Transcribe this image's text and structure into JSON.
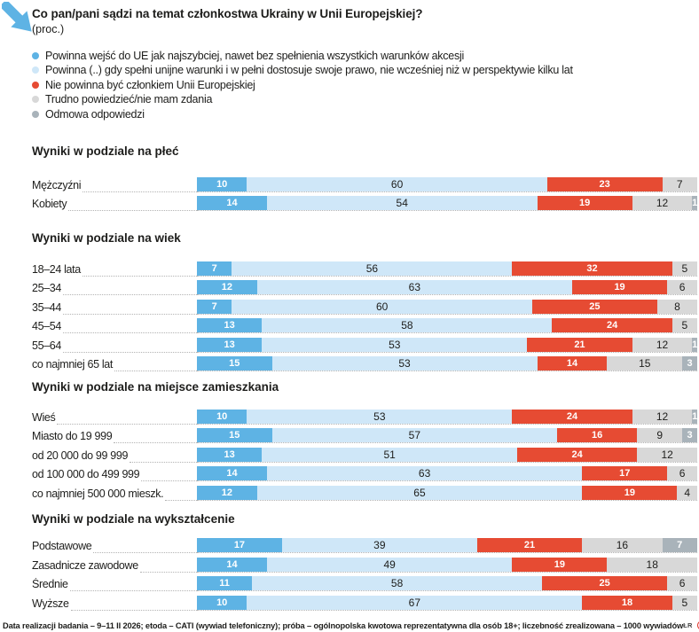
{
  "header": {
    "title": "Co pan/pani sądzi na temat członkostwa Ukrainy w Unii Europejskiej?",
    "unit": "(proc.)"
  },
  "chart_data": {
    "type": "bar",
    "orientation": "horizontal",
    "stacked": true,
    "unit": "proc.",
    "xlim": [
      0,
      100
    ],
    "grid": false,
    "legend_position": "top-left",
    "series": [
      {
        "name": "Powinna wejść do UE jak najszybciej, nawet bez spełnienia wszystkich warunków akcesji",
        "color": "#5eb3e4"
      },
      {
        "name": "Powinna (..) gdy spełni unijne warunki i w pełni dostosuje swoje prawo, nie wcześniej niż w perspektywie kilku lat",
        "color": "#cfe7f8"
      },
      {
        "name": "Nie powinna być członkiem Unii Europejskiej",
        "color": "#e64b33"
      },
      {
        "name": "Trudno powiedzieć/nie mam zdania",
        "color": "#d8d8d8"
      },
      {
        "name": "Odmowa odpowiedzi",
        "color": "#a9b3ba"
      }
    ],
    "groups": [
      {
        "title": "Wyniki w podziale na płeć",
        "rows": [
          {
            "label": "Mężczyźni",
            "values": [
              10,
              60,
              23,
              7,
              0
            ]
          },
          {
            "label": "Kobiety",
            "values": [
              14,
              54,
              19,
              12,
              1
            ]
          }
        ]
      },
      {
        "title": "Wyniki w podziale na wiek",
        "rows": [
          {
            "label": "18–24 lata",
            "values": [
              7,
              56,
              32,
              5,
              0
            ]
          },
          {
            "label": "25–34",
            "values": [
              12,
              63,
              19,
              6,
              0
            ]
          },
          {
            "label": "35–44",
            "values": [
              7,
              60,
              25,
              8,
              0
            ]
          },
          {
            "label": "45–54",
            "values": [
              13,
              58,
              24,
              5,
              0
            ]
          },
          {
            "label": "55–64",
            "values": [
              13,
              53,
              21,
              12,
              1
            ]
          },
          {
            "label": "co najmniej 65 lat",
            "values": [
              15,
              53,
              14,
              15,
              3
            ]
          }
        ]
      },
      {
        "title": "Wyniki w podziale na miejsce zamieszkania",
        "rows": [
          {
            "label": "Wieś",
            "values": [
              10,
              53,
              24,
              12,
              1
            ]
          },
          {
            "label": "Miasto do 19 999",
            "values": [
              15,
              57,
              16,
              9,
              3
            ]
          },
          {
            "label": "od 20 000 do 99 999",
            "values": [
              13,
              51,
              24,
              12,
              0
            ]
          },
          {
            "label": "od 100 000 do 499 999",
            "values": [
              14,
              63,
              17,
              6,
              0
            ]
          },
          {
            "label": "co najmniej 500 000 mieszk.",
            "values": [
              12,
              65,
              19,
              4,
              0
            ]
          }
        ]
      },
      {
        "title": "Wyniki w podziale na wykształcenie",
        "rows": [
          {
            "label": "Podstawowe",
            "values": [
              17,
              39,
              21,
              16,
              7
            ]
          },
          {
            "label": "Zasadnicze zawodowe",
            "values": [
              14,
              49,
              19,
              18,
              0
            ]
          },
          {
            "label": "Średnie",
            "values": [
              11,
              58,
              25,
              6,
              0
            ]
          },
          {
            "label": "Wyższe",
            "values": [
              10,
              67,
              18,
              5,
              0
            ]
          }
        ]
      }
    ]
  },
  "footer": {
    "text": "Data realizacji badania – 9–11 II 2026; etoda – CATI (wywiad telefoniczny); próba – ogólnopolska kwotowa reprezentatywna dla osób 18+; liczebność zrealizowana – 1000 wywiadów",
    "credit": "ŁR",
    "copyright_icon": "C",
    "phonogram_icon": "P"
  },
  "brand": {
    "arrow_color": "#5eb3e4"
  }
}
